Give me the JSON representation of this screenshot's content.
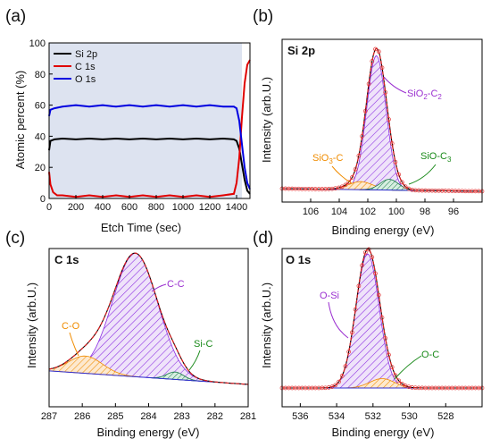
{
  "chart_data": [
    {
      "panel": "(a)",
      "type": "line",
      "xlabel": "Etch Time (sec)",
      "ylabel": "Atomic percent (%)",
      "xlim": [
        0,
        1500
      ],
      "ylim": [
        0,
        100
      ],
      "xticks": [
        "0",
        "200",
        "400",
        "600",
        "800",
        "1000",
        "1200",
        "1400"
      ],
      "yticks": [
        "0",
        "20",
        "40",
        "60",
        "80",
        "100"
      ],
      "legend": "top-left",
      "shaded_region_x": [
        0,
        1440
      ],
      "series": [
        {
          "name": "Si 2p",
          "color": "#000000",
          "x": [
            0,
            10,
            40,
            100,
            200,
            300,
            400,
            500,
            600,
            700,
            800,
            900,
            1000,
            1100,
            1200,
            1300,
            1380,
            1400,
            1420,
            1440,
            1460,
            1480,
            1500
          ],
          "y": [
            31,
            37,
            38,
            38.5,
            38,
            38.5,
            38,
            38.5,
            38,
            38.5,
            38,
            38.5,
            38,
            38.5,
            38,
            38.5,
            38,
            37,
            32,
            22,
            12,
            5,
            3
          ]
        },
        {
          "name": "C 1s",
          "color": "#e00000",
          "x": [
            0,
            10,
            30,
            60,
            100,
            200,
            300,
            400,
            500,
            600,
            700,
            800,
            900,
            1000,
            1100,
            1200,
            1300,
            1380,
            1400,
            1420,
            1440,
            1460,
            1480,
            1500
          ],
          "y": [
            17,
            9,
            4,
            2,
            2,
            1,
            2,
            1,
            2,
            1,
            2,
            1,
            2,
            1,
            2,
            1,
            2,
            3,
            10,
            26,
            52,
            74,
            86,
            89
          ]
        },
        {
          "name": "O 1s",
          "color": "#0000e0",
          "x": [
            0,
            10,
            40,
            100,
            200,
            300,
            400,
            500,
            600,
            700,
            800,
            900,
            1000,
            1100,
            1200,
            1300,
            1380,
            1400,
            1420,
            1440,
            1460,
            1480,
            1500
          ],
          "y": [
            53,
            57,
            58,
            59,
            60,
            59,
            60,
            59,
            60,
            59,
            60,
            59,
            60,
            59,
            60,
            59,
            59,
            58,
            50,
            35,
            20,
            10,
            6
          ]
        }
      ]
    },
    {
      "panel": "(b)",
      "type": "area",
      "label": "Si 2p",
      "xlabel": "Binding energy (eV)",
      "ylabel": "Intensity (arb.U.)",
      "xlim": [
        108,
        94
      ],
      "xticks": [
        "106",
        "104",
        "102",
        "100",
        "98",
        "96"
      ],
      "peaks": [
        {
          "name": "SiO2-C2",
          "center": 101.4,
          "height": 1.0,
          "fwhm": 1.6
        },
        {
          "name": "SiO3-C",
          "center": 102.5,
          "height": 0.06,
          "fwhm": 2.0
        },
        {
          "name": "SiO-C3",
          "center": 100.5,
          "height": 0.08,
          "fwhm": 1.5
        }
      ],
      "annotations": [
        {
          "main": "SiO",
          "sub1": "2",
          "mid": "-C",
          "sub2": "2",
          "color": "#9b30d0"
        },
        {
          "main": "SiO",
          "sub1": "3",
          "mid": "-C",
          "sub2": "",
          "color": "#f08c00"
        },
        {
          "main": "SiO-C",
          "sub1": "",
          "mid": "",
          "sub2": "3",
          "color": "#1a8a1a"
        }
      ]
    },
    {
      "panel": "(c)",
      "type": "area",
      "label": "C 1s",
      "xlabel": "Binding energy (eV)",
      "ylabel": "Intensity (arb.U.)",
      "xlim": [
        287,
        281
      ],
      "xticks": [
        "287",
        "286",
        "285",
        "284",
        "283",
        "282",
        "281"
      ],
      "peaks": [
        {
          "name": "C-C",
          "center": 284.4,
          "height": 1.0,
          "fwhm": 1.6
        },
        {
          "name": "C-O",
          "center": 285.9,
          "height": 0.14,
          "fwhm": 1.2
        },
        {
          "name": "Si-C",
          "center": 283.2,
          "height": 0.06,
          "fwhm": 0.6
        }
      ],
      "annotations": [
        {
          "text": "C-C",
          "color": "#9b30d0"
        },
        {
          "text": "C-O",
          "color": "#f08c00"
        },
        {
          "text": "Si-C",
          "color": "#1a8a1a"
        }
      ]
    },
    {
      "panel": "(d)",
      "type": "area",
      "label": "O 1s",
      "xlabel": "Binding energy (eV)",
      "ylabel": "Intensity (arb.U.)",
      "xlim": [
        537,
        526
      ],
      "xticks": [
        "536",
        "534",
        "532",
        "530",
        "528"
      ],
      "peaks": [
        {
          "name": "O-Si",
          "center": 532.3,
          "height": 1.0,
          "fwhm": 1.5
        },
        {
          "name": "O-C",
          "center": 531.5,
          "height": 0.07,
          "fwhm": 1.6
        }
      ],
      "annotations": [
        {
          "text": "O-Si",
          "color": "#9b30d0"
        },
        {
          "text": "O-C",
          "color": "#1a8a1a"
        }
      ]
    }
  ]
}
